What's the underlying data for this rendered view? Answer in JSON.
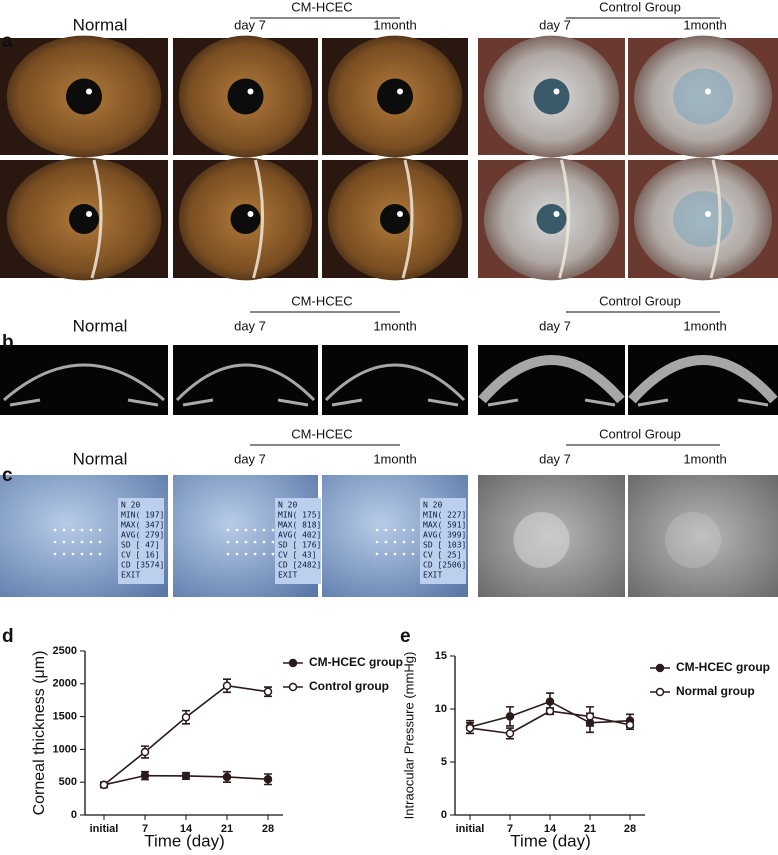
{
  "panels": [
    {
      "letter": "a",
      "normal": "Normal",
      "group1": "CM-HCEC",
      "group2": "Control Group",
      "group1_times": [
        "day 7",
        "1month"
      ],
      "group2_times": [
        "day 7",
        "1month"
      ]
    },
    {
      "letter": "b",
      "normal": "Normal",
      "group1": "CM-HCEC",
      "group2": "Control Group",
      "group1_times": [
        "day 7",
        "1month"
      ],
      "group2_times": [
        "day 7",
        "1month"
      ]
    },
    {
      "letter": "c",
      "normal": "Normal",
      "group1": "CM-HCEC",
      "group2": "Control Group",
      "group1_times": [
        "day 7",
        "1month"
      ],
      "group2_times": [
        "day 7",
        "1month"
      ],
      "readouts": [
        [
          "N      20",
          "MIN( 197]",
          "MAX( 347]",
          "AVG( 279]",
          "SD  [  47]",
          "CV  [  16]",
          "CD  [3574]",
          "EXIT"
        ],
        [
          "N      20",
          "MIN( 175]",
          "MAX( 818]",
          "AVG( 402]",
          "SD  [ 176]",
          "CV  [  43]",
          "CD  [2482]",
          "EXIT"
        ],
        [
          "N      20",
          "MIN( 227]",
          "MAX( 591]",
          "AVG( 399]",
          "SD  [ 103]",
          "CV  [  25]",
          "CD  [2506]",
          "EXIT"
        ]
      ]
    }
  ],
  "chart_data": [
    {
      "type": "line",
      "letter": "d",
      "xlabel": "Time (day)",
      "ylabel": "Corneal thickness (μm)",
      "categories": [
        "initial",
        "7",
        "14",
        "21",
        "28"
      ],
      "series": [
        {
          "name": "CM-HCEC group",
          "color": "#2b1a1a",
          "marker": "filled",
          "values": [
            460,
            600,
            595,
            580,
            545
          ],
          "errors": [
            40,
            60,
            50,
            80,
            80
          ]
        },
        {
          "name": "Control group",
          "color": "#2b1a1a",
          "marker": "open",
          "values": [
            460,
            960,
            1490,
            1970,
            1880
          ],
          "errors": [
            40,
            90,
            100,
            100,
            70
          ]
        }
      ],
      "ylim": [
        0,
        2500
      ],
      "yticks": [
        0,
        500,
        1000,
        1500,
        2000,
        2500
      ],
      "legend": "upper right"
    },
    {
      "type": "line",
      "letter": "e",
      "xlabel": "Time (day)",
      "ylabel": "Intraocular Pressure (mmHg)",
      "categories": [
        "initial",
        "7",
        "14",
        "21",
        "28"
      ],
      "series": [
        {
          "name": "CM-HCEC group",
          "color": "#2b1a1a",
          "marker": "filled",
          "values": [
            8.3,
            9.3,
            10.7,
            8.7,
            8.9
          ],
          "errors": [
            0.6,
            0.9,
            0.8,
            0.9,
            0.6
          ]
        },
        {
          "name": "Normal group",
          "color": "#2b1a1a",
          "marker": "open",
          "values": [
            8.2,
            7.7,
            9.8,
            9.3,
            8.5
          ],
          "errors": [
            0.5,
            0.5,
            0.3,
            0.9,
            0.4
          ]
        }
      ],
      "ylim": [
        0,
        15
      ],
      "yticks": [
        0,
        5,
        10,
        15
      ],
      "legend": "upper right"
    }
  ]
}
